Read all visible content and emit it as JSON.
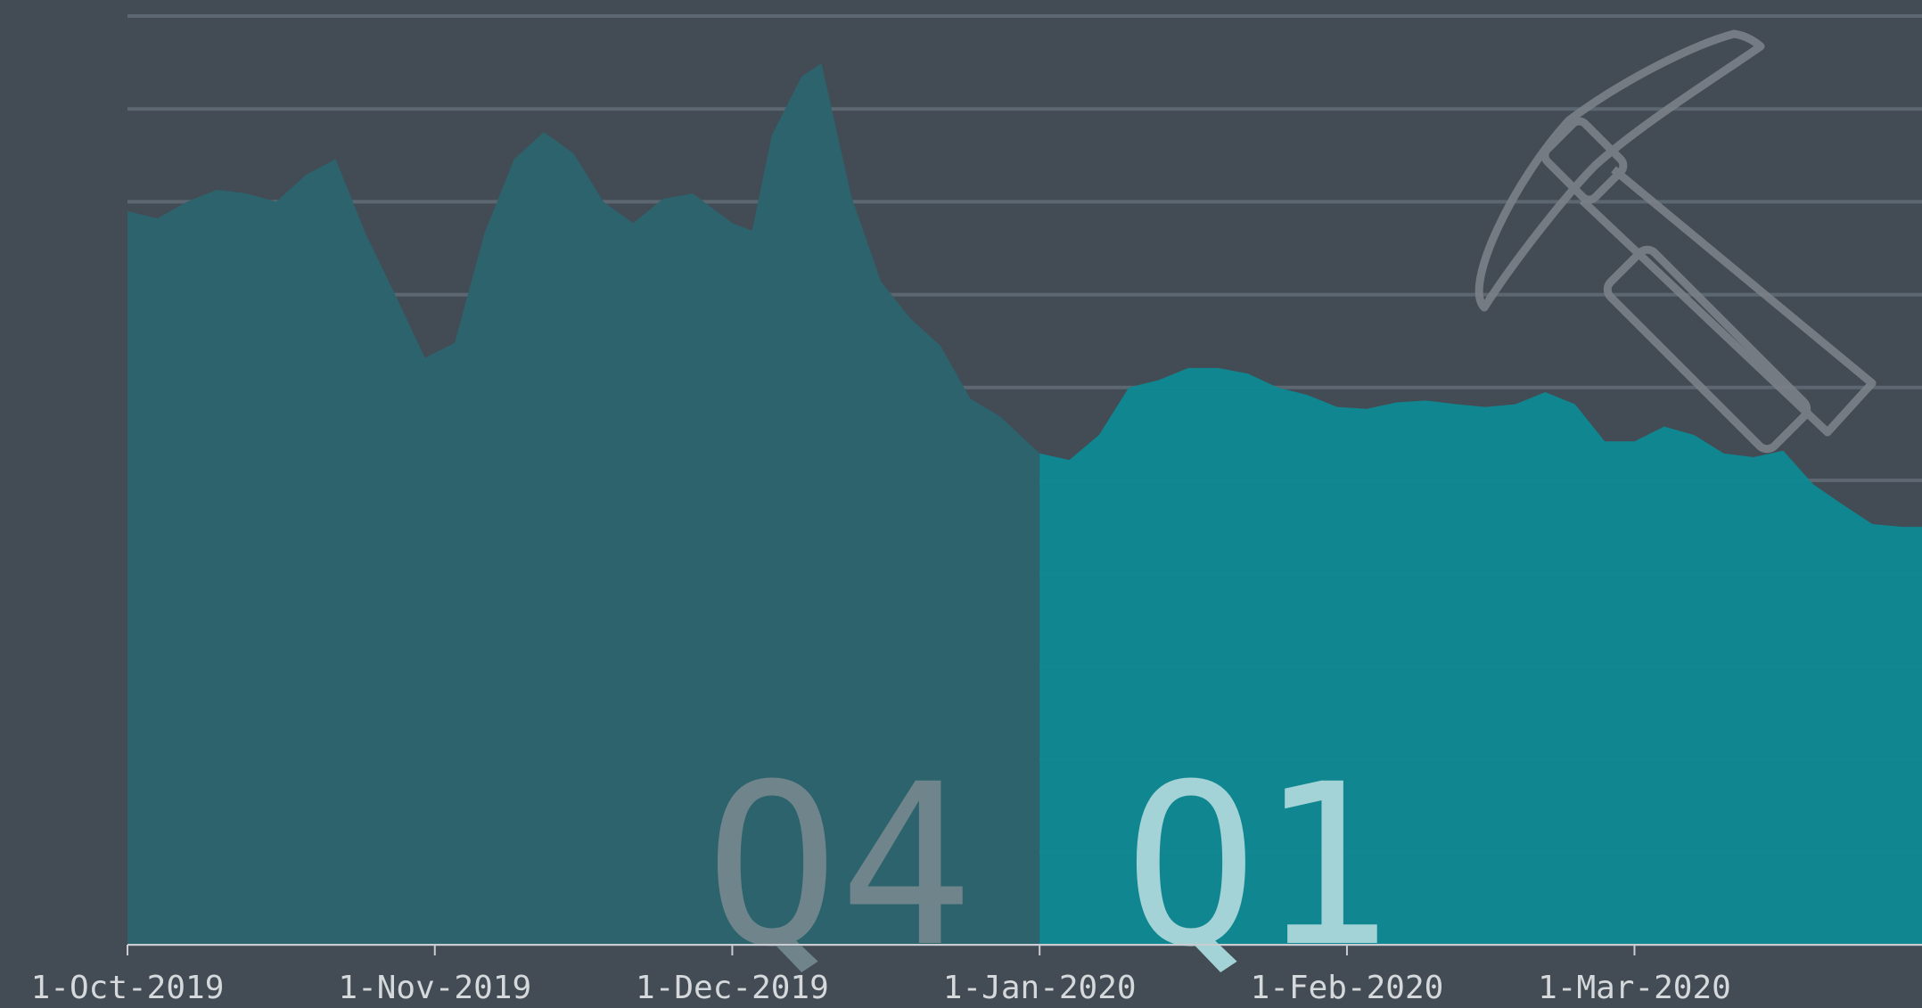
{
  "chart_data": {
    "type": "area",
    "series": [
      {
        "name": "Q4",
        "color": "#2c636d",
        "label_color": "#6f858b",
        "x": [
          "2019-10-01",
          "2019-10-04",
          "2019-10-07",
          "2019-10-10",
          "2019-10-13",
          "2019-10-16",
          "2019-10-19",
          "2019-10-22",
          "2019-10-25",
          "2019-10-28",
          "2019-10-31",
          "2019-11-03",
          "2019-11-06",
          "2019-11-09",
          "2019-11-12",
          "2019-11-15",
          "2019-11-18",
          "2019-11-21",
          "2019-11-24",
          "2019-11-27",
          "2019-12-01",
          "2019-12-03",
          "2019-12-05",
          "2019-12-08",
          "2019-12-10",
          "2019-12-13",
          "2019-12-16",
          "2019-12-19",
          "2019-12-22",
          "2019-12-25",
          "2019-12-28",
          "2020-01-01"
        ],
        "values": [
          7.9,
          7.82,
          8.0,
          8.13,
          8.09,
          8.0,
          8.29,
          8.46,
          7.66,
          7.0,
          6.32,
          6.48,
          7.66,
          8.46,
          8.75,
          8.52,
          8.0,
          7.77,
          8.03,
          8.09,
          7.77,
          7.69,
          8.72,
          9.35,
          9.49,
          8.06,
          7.14,
          6.74,
          6.45,
          5.88,
          5.69,
          5.29
        ]
      },
      {
        "name": "Q1",
        "color": "#0e8893",
        "label_color": "#a3d3d6",
        "x": [
          "2020-01-01",
          "2020-01-04",
          "2020-01-07",
          "2020-01-10",
          "2020-01-13",
          "2020-01-16",
          "2020-01-19",
          "2020-01-22",
          "2020-01-25",
          "2020-01-28",
          "2020-01-31",
          "2020-02-03",
          "2020-02-06",
          "2020-02-09",
          "2020-02-12",
          "2020-02-15",
          "2020-02-18",
          "2020-02-21",
          "2020-02-24",
          "2020-02-27",
          "2020-03-01",
          "2020-03-04",
          "2020-03-07",
          "2020-03-10",
          "2020-03-13",
          "2020-03-16",
          "2020-03-19",
          "2020-03-22",
          "2020-03-25",
          "2020-03-28",
          "2020-03-30"
        ],
        "values": [
          5.29,
          5.22,
          5.49,
          6.0,
          6.08,
          6.21,
          6.21,
          6.15,
          6.0,
          5.92,
          5.79,
          5.77,
          5.84,
          5.86,
          5.82,
          5.79,
          5.82,
          5.95,
          5.82,
          5.42,
          5.42,
          5.58,
          5.49,
          5.29,
          5.25,
          5.32,
          4.96,
          4.74,
          4.53,
          4.5,
          4.5
        ]
      }
    ],
    "xlim": [
      "2019-10-01",
      "2020-03-30"
    ],
    "xticks": [
      {
        "value": "2019-10-01",
        "label": "1-Oct-2019"
      },
      {
        "value": "2019-11-01",
        "label": "1-Nov-2019"
      },
      {
        "value": "2019-12-01",
        "label": "1-Dec-2019"
      },
      {
        "value": "2020-01-01",
        "label": "1-Jan-2020"
      },
      {
        "value": "2020-02-01",
        "label": "1-Feb-2020"
      },
      {
        "value": "2020-03-01",
        "label": "1-Mar-2020"
      }
    ],
    "ylim": [
      0,
      10
    ],
    "yticks": [
      0,
      1,
      2,
      3,
      4,
      5,
      6,
      7,
      8,
      9,
      10
    ],
    "grid": true
  }
}
